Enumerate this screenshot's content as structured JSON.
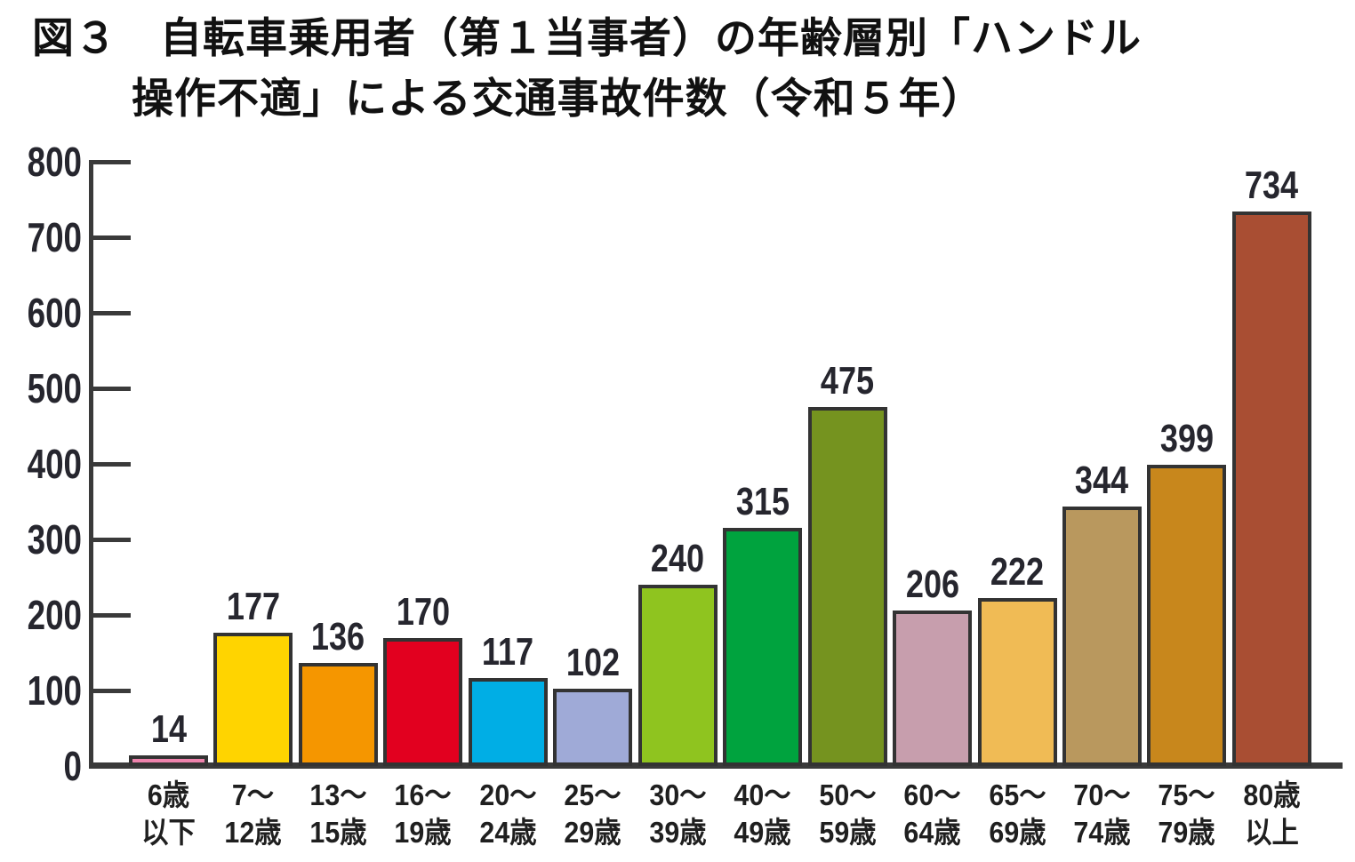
{
  "title": {
    "line1": "図３　自転車乗用者（第１当事者）の年齢層別「ハンドル",
    "line2": "操作不適」による交通事故件数（令和５年）"
  },
  "chart_data": {
    "type": "bar",
    "title": "図３　自転車乗用者（第１当事者）の年齢層別「ハンドル操作不適」による交通事故件数（令和５年）",
    "categories": [
      "6歳以下",
      "7～12歳",
      "13～15歳",
      "16～19歳",
      "20～24歳",
      "25～29歳",
      "30～39歳",
      "40～49歳",
      "50～59歳",
      "60～64歳",
      "65～69歳",
      "70～74歳",
      "75～79歳",
      "80歳以上"
    ],
    "category_lines": [
      [
        "6歳",
        "以下"
      ],
      [
        "7～",
        "12歳"
      ],
      [
        "13～",
        "15歳"
      ],
      [
        "16～",
        "19歳"
      ],
      [
        "20～",
        "24歳"
      ],
      [
        "25～",
        "29歳"
      ],
      [
        "30～",
        "39歳"
      ],
      [
        "40～",
        "49歳"
      ],
      [
        "50～",
        "59歳"
      ],
      [
        "60～",
        "64歳"
      ],
      [
        "65～",
        "69歳"
      ],
      [
        "70～",
        "74歳"
      ],
      [
        "75～",
        "79歳"
      ],
      [
        "80歳",
        "以上"
      ]
    ],
    "values": [
      14,
      177,
      136,
      170,
      117,
      102,
      240,
      315,
      475,
      206,
      222,
      344,
      399,
      734
    ],
    "bar_colors": [
      "#ee82ac",
      "#ffd400",
      "#f59600",
      "#e2001f",
      "#00aee5",
      "#9faad7",
      "#8fc41f",
      "#00a33e",
      "#75931f",
      "#c79ead",
      "#f0bb55",
      "#b9985e",
      "#c8871c",
      "#a94e33"
    ],
    "bar_outline_color": "#333333",
    "axis_color": "#3a3a3a",
    "label_color": "#26262e",
    "xlabel": "",
    "ylabel": "",
    "ylim": [
      0,
      800
    ],
    "y_ticks": [
      800,
      700,
      600,
      500,
      400,
      300,
      200,
      100,
      0
    ],
    "grid": false,
    "legend": false
  }
}
